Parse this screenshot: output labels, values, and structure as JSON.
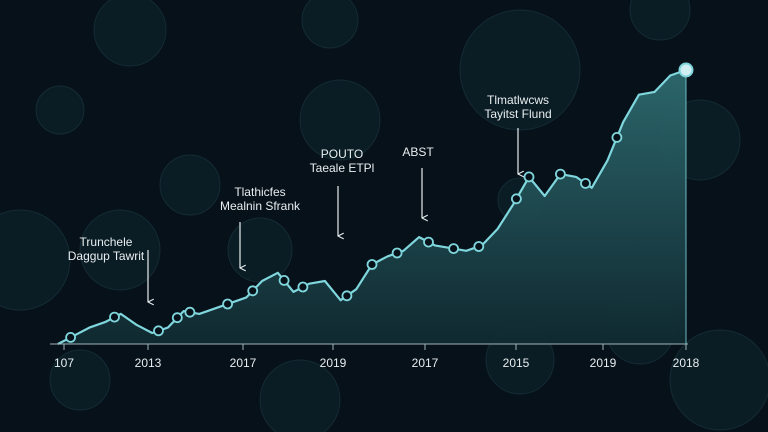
{
  "colors": {
    "background": "#07111a",
    "line": "#7fd6dc",
    "area_top": "#2d6a6f",
    "area_bottom": "#102a31",
    "text": "#e8eef0",
    "axis": "#9fb4ba",
    "coin": "#0f2a30"
  },
  "chart_data": {
    "type": "area",
    "title": "",
    "xlabel": "",
    "ylabel": "",
    "grid": false,
    "legend": "none",
    "x_tick_labels": [
      "107",
      "2013",
      "2017",
      "2019",
      "2017",
      "2015",
      "2019",
      "2018"
    ],
    "ylim": [
      0,
      100
    ],
    "series": [
      {
        "values": [
          0,
          3,
          6,
          8,
          11,
          7,
          4,
          6,
          12,
          11,
          13,
          15,
          17,
          23,
          26,
          19,
          22,
          23,
          16,
          20,
          29,
          32,
          34,
          39,
          36,
          35,
          34,
          36,
          42,
          51,
          61,
          54,
          62,
          61,
          57,
          67,
          81,
          91,
          92,
          98,
          100
        ]
      }
    ],
    "markers": [
      2,
      9,
      16,
      19,
      21,
      27,
      31,
      36,
      39,
      46,
      50,
      54,
      59,
      63,
      67,
      73,
      75,
      80,
      84,
      89
    ],
    "annotations": [
      {
        "lines": [
          "Trunchele",
          "Daggup Tawrit"
        ],
        "arrow_to_tick": 1
      },
      {
        "lines": [
          "Tlathicfes",
          "Mealnin Sfrank"
        ],
        "arrow_to_tick": 2
      },
      {
        "lines": [
          "POUTO",
          "Taeale ETPl"
        ],
        "arrow_to_tick": 3
      },
      {
        "lines": [
          "ABST"
        ],
        "arrow_to_tick": 4
      },
      {
        "lines": [
          "Tlmatlwcws",
          "Tayitst Flund"
        ],
        "arrow_to_tick": 5
      }
    ]
  }
}
